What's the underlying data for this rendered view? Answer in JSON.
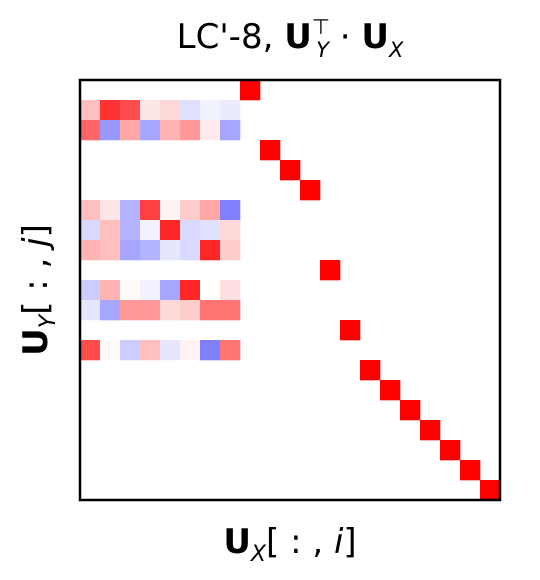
{
  "chart_data": {
    "type": "heatmap",
    "title": {
      "prefix": "LC'-8, ",
      "left_symbol": "U",
      "left_sub": "Y",
      "left_sup": "⊤",
      "operator": " · ",
      "right_symbol": "U",
      "right_sub": "X"
    },
    "xlabel": {
      "symbol": "U",
      "sub": "X",
      "index_open": "[ : , ",
      "index_var": "i",
      "index_close": "]"
    },
    "ylabel": {
      "symbol": "U",
      "sub": "Y",
      "index_open": "[ : , ",
      "index_var": "j",
      "index_close": "]"
    },
    "n_rows": 21,
    "n_cols": 21,
    "colormap": "bwr",
    "vmin": -1,
    "vmax": 1,
    "grid": false,
    "colorbar": false,
    "cells": [
      {
        "row": 0,
        "col": 8,
        "value": 1.0
      },
      {
        "row": 1,
        "col": 0,
        "value": 0.25
      },
      {
        "row": 1,
        "col": 1,
        "value": 0.8
      },
      {
        "row": 1,
        "col": 2,
        "value": 0.7
      },
      {
        "row": 1,
        "col": 3,
        "value": 0.1
      },
      {
        "row": 1,
        "col": 4,
        "value": 0.15
      },
      {
        "row": 1,
        "col": 5,
        "value": -0.12
      },
      {
        "row": 1,
        "col": 6,
        "value": -0.05
      },
      {
        "row": 1,
        "col": 7,
        "value": -0.08
      },
      {
        "row": 2,
        "col": 0,
        "value": 0.6
      },
      {
        "row": 2,
        "col": 1,
        "value": -0.4
      },
      {
        "row": 2,
        "col": 2,
        "value": 0.35
      },
      {
        "row": 2,
        "col": 3,
        "value": -0.35
      },
      {
        "row": 2,
        "col": 4,
        "value": 0.3
      },
      {
        "row": 2,
        "col": 5,
        "value": 0.4
      },
      {
        "row": 2,
        "col": 6,
        "value": 0.08
      },
      {
        "row": 2,
        "col": 7,
        "value": -0.35
      },
      {
        "row": 3,
        "col": 9,
        "value": 1.0
      },
      {
        "row": 4,
        "col": 10,
        "value": 1.0
      },
      {
        "row": 5,
        "col": 11,
        "value": 1.0
      },
      {
        "row": 6,
        "col": 0,
        "value": 0.25
      },
      {
        "row": 6,
        "col": 1,
        "value": 0.1
      },
      {
        "row": 6,
        "col": 2,
        "value": -0.3
      },
      {
        "row": 6,
        "col": 3,
        "value": 0.75
      },
      {
        "row": 6,
        "col": 4,
        "value": 0.05
      },
      {
        "row": 6,
        "col": 5,
        "value": 0.2
      },
      {
        "row": 6,
        "col": 6,
        "value": 0.35
      },
      {
        "row": 6,
        "col": 7,
        "value": -0.5
      },
      {
        "row": 7,
        "col": 0,
        "value": -0.15
      },
      {
        "row": 7,
        "col": 1,
        "value": 0.25
      },
      {
        "row": 7,
        "col": 2,
        "value": -0.3
      },
      {
        "row": 7,
        "col": 3,
        "value": -0.05
      },
      {
        "row": 7,
        "col": 4,
        "value": 0.85
      },
      {
        "row": 7,
        "col": 5,
        "value": -0.15
      },
      {
        "row": 7,
        "col": 6,
        "value": -0.12
      },
      {
        "row": 7,
        "col": 7,
        "value": 0.15
      },
      {
        "row": 8,
        "col": 0,
        "value": 0.3
      },
      {
        "row": 8,
        "col": 1,
        "value": 0.25
      },
      {
        "row": 8,
        "col": 2,
        "value": -0.35
      },
      {
        "row": 8,
        "col": 3,
        "value": -0.3
      },
      {
        "row": 8,
        "col": 4,
        "value": -0.1
      },
      {
        "row": 8,
        "col": 5,
        "value": -0.15
      },
      {
        "row": 8,
        "col": 6,
        "value": 0.85
      },
      {
        "row": 8,
        "col": 7,
        "value": 0.2
      },
      {
        "row": 9,
        "col": 12,
        "value": 1.0
      },
      {
        "row": 10,
        "col": 0,
        "value": -0.2
      },
      {
        "row": 10,
        "col": 1,
        "value": 0.3
      },
      {
        "row": 10,
        "col": 2,
        "value": 0.02
      },
      {
        "row": 10,
        "col": 3,
        "value": -0.05
      },
      {
        "row": 10,
        "col": 4,
        "value": -0.35
      },
      {
        "row": 10,
        "col": 5,
        "value": 0.85
      },
      {
        "row": 10,
        "col": 6,
        "value": 0.0
      },
      {
        "row": 10,
        "col": 7,
        "value": 0.12
      },
      {
        "row": 11,
        "col": 0,
        "value": -0.1
      },
      {
        "row": 11,
        "col": 1,
        "value": -0.35
      },
      {
        "row": 11,
        "col": 2,
        "value": 0.4
      },
      {
        "row": 11,
        "col": 3,
        "value": 0.4
      },
      {
        "row": 11,
        "col": 4,
        "value": 0.15
      },
      {
        "row": 11,
        "col": 5,
        "value": 0.2
      },
      {
        "row": 11,
        "col": 6,
        "value": 0.55
      },
      {
        "row": 11,
        "col": 7,
        "value": 0.55
      },
      {
        "row": 12,
        "col": 13,
        "value": 1.0
      },
      {
        "row": 13,
        "col": 0,
        "value": 0.7
      },
      {
        "row": 13,
        "col": 1,
        "value": 0.02
      },
      {
        "row": 13,
        "col": 2,
        "value": -0.2
      },
      {
        "row": 13,
        "col": 3,
        "value": 0.25
      },
      {
        "row": 13,
        "col": 4,
        "value": -0.1
      },
      {
        "row": 13,
        "col": 5,
        "value": 0.05
      },
      {
        "row": 13,
        "col": 6,
        "value": -0.5
      },
      {
        "row": 13,
        "col": 7,
        "value": 0.55
      },
      {
        "row": 14,
        "col": 14,
        "value": 1.0
      },
      {
        "row": 15,
        "col": 15,
        "value": 1.0
      },
      {
        "row": 16,
        "col": 16,
        "value": 1.0
      },
      {
        "row": 17,
        "col": 17,
        "value": 1.0
      },
      {
        "row": 18,
        "col": 18,
        "value": 1.0
      },
      {
        "row": 19,
        "col": 19,
        "value": 1.0
      },
      {
        "row": 20,
        "col": 20,
        "value": 1.0
      }
    ]
  }
}
